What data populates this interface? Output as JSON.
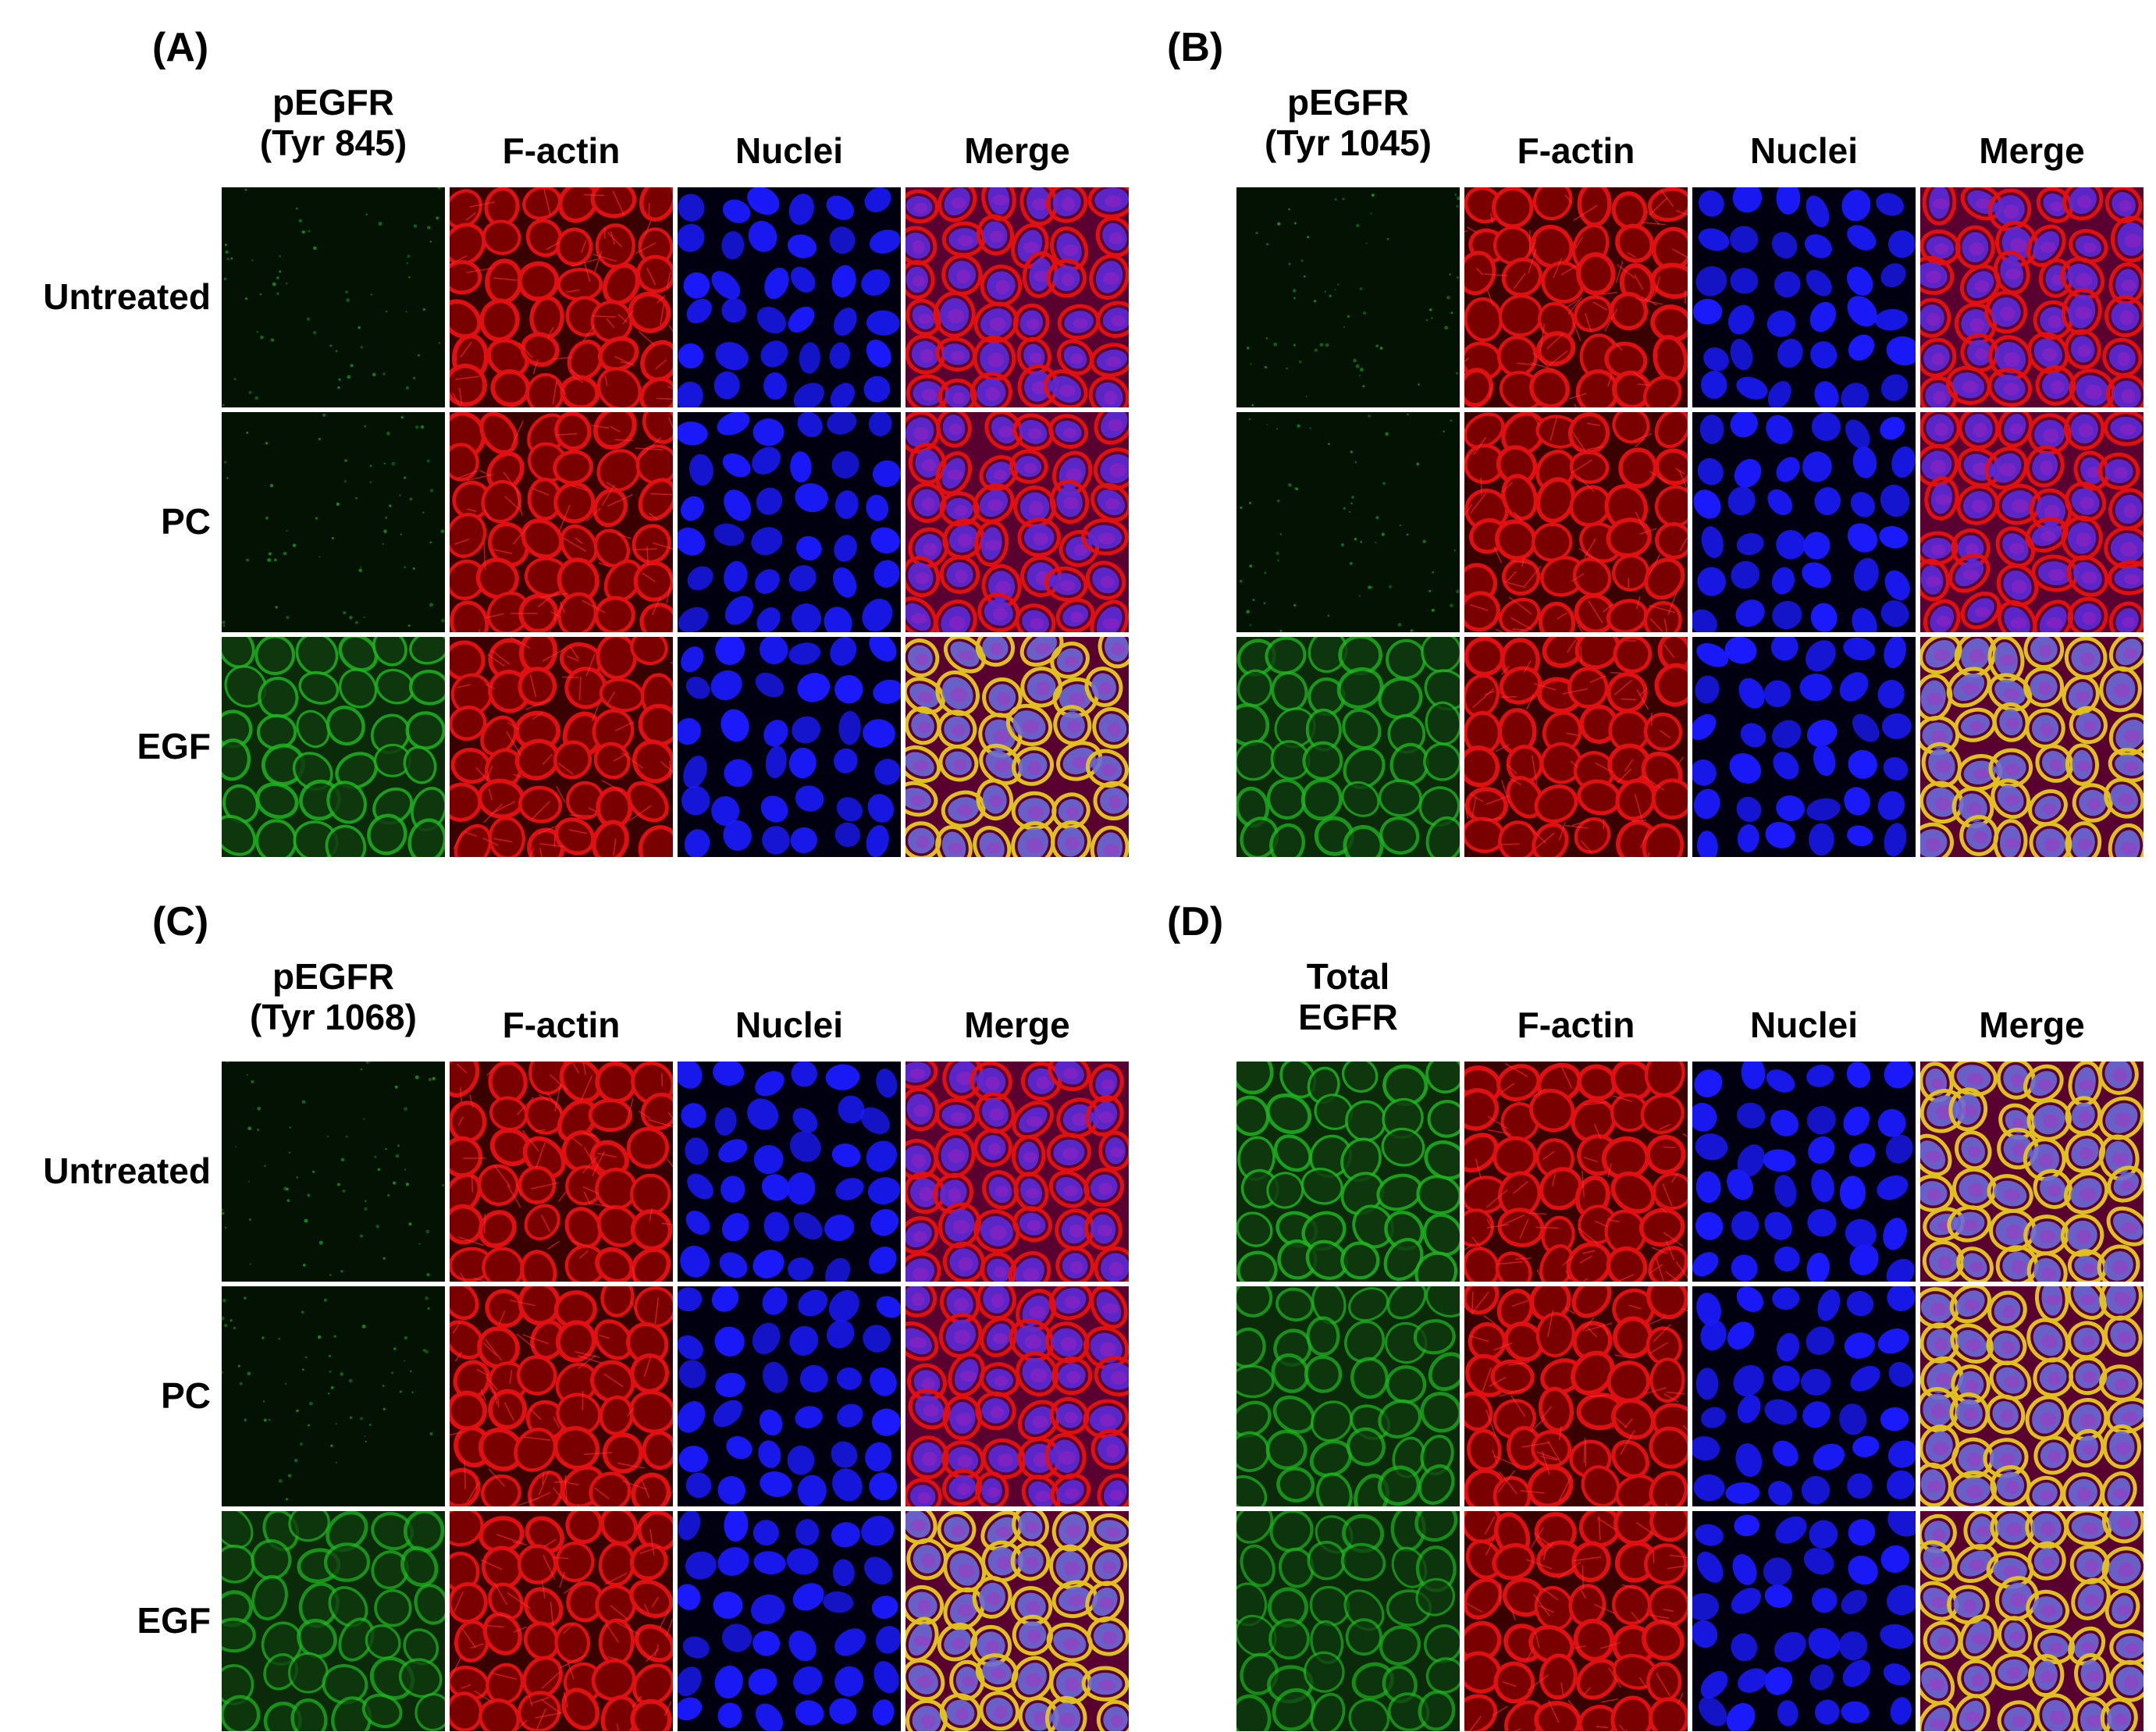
{
  "columns_common": [
    "F-actin",
    "Nuclei",
    "Merge"
  ],
  "rows": [
    "Untreated",
    "PC",
    "EGF"
  ],
  "panels": [
    {
      "letter": "(A)",
      "first_column": [
        "pEGFR",
        "(Tyr 845)"
      ],
      "show_row_labels": true
    },
    {
      "letter": "(B)",
      "first_column": [
        "pEGFR",
        "(Tyr 1045)"
      ],
      "show_row_labels": false
    },
    {
      "letter": "(C)",
      "first_column": [
        "pEGFR",
        "(Tyr 1068)"
      ],
      "show_row_labels": true
    },
    {
      "letter": "(D)",
      "first_column": [
        "Total",
        "EGFR"
      ],
      "show_row_labels": false
    }
  ],
  "channel_colors": {
    "green": "#1fb31f",
    "red": "#e01010",
    "blue": "#1a1aff",
    "merge_yellow": "#e0c020",
    "merge_magenta": "#c020c0"
  },
  "green_intensity": [
    [
      0.08,
      0.12,
      0.85
    ],
    [
      0.06,
      0.1,
      0.8
    ],
    [
      0.1,
      0.1,
      0.75
    ],
    [
      0.85,
      0.75,
      0.7
    ]
  ]
}
